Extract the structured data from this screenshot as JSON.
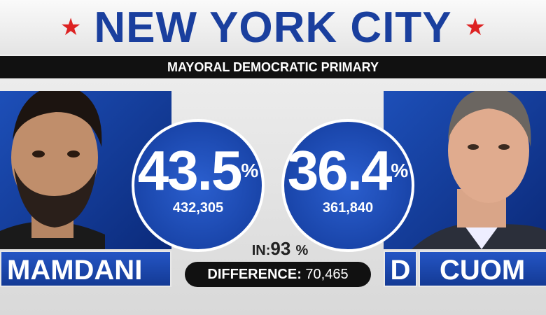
{
  "header": {
    "title": "NEW YORK CITY",
    "subtitle": "MAYORAL DEMOCRATIC PRIMARY"
  },
  "candidates": [
    {
      "name": "MAMDANI",
      "percent": 43.5,
      "percent_sign": "%",
      "votes": "432,305"
    },
    {
      "party": "D",
      "name": "CUOM",
      "percent": 36.4,
      "percent_sign": "%",
      "votes": "361,840"
    }
  ],
  "reporting": {
    "label": "IN:",
    "value": 93,
    "unit": "%"
  },
  "difference": {
    "label": "DIFFERENCE:",
    "value": "70,465"
  }
}
